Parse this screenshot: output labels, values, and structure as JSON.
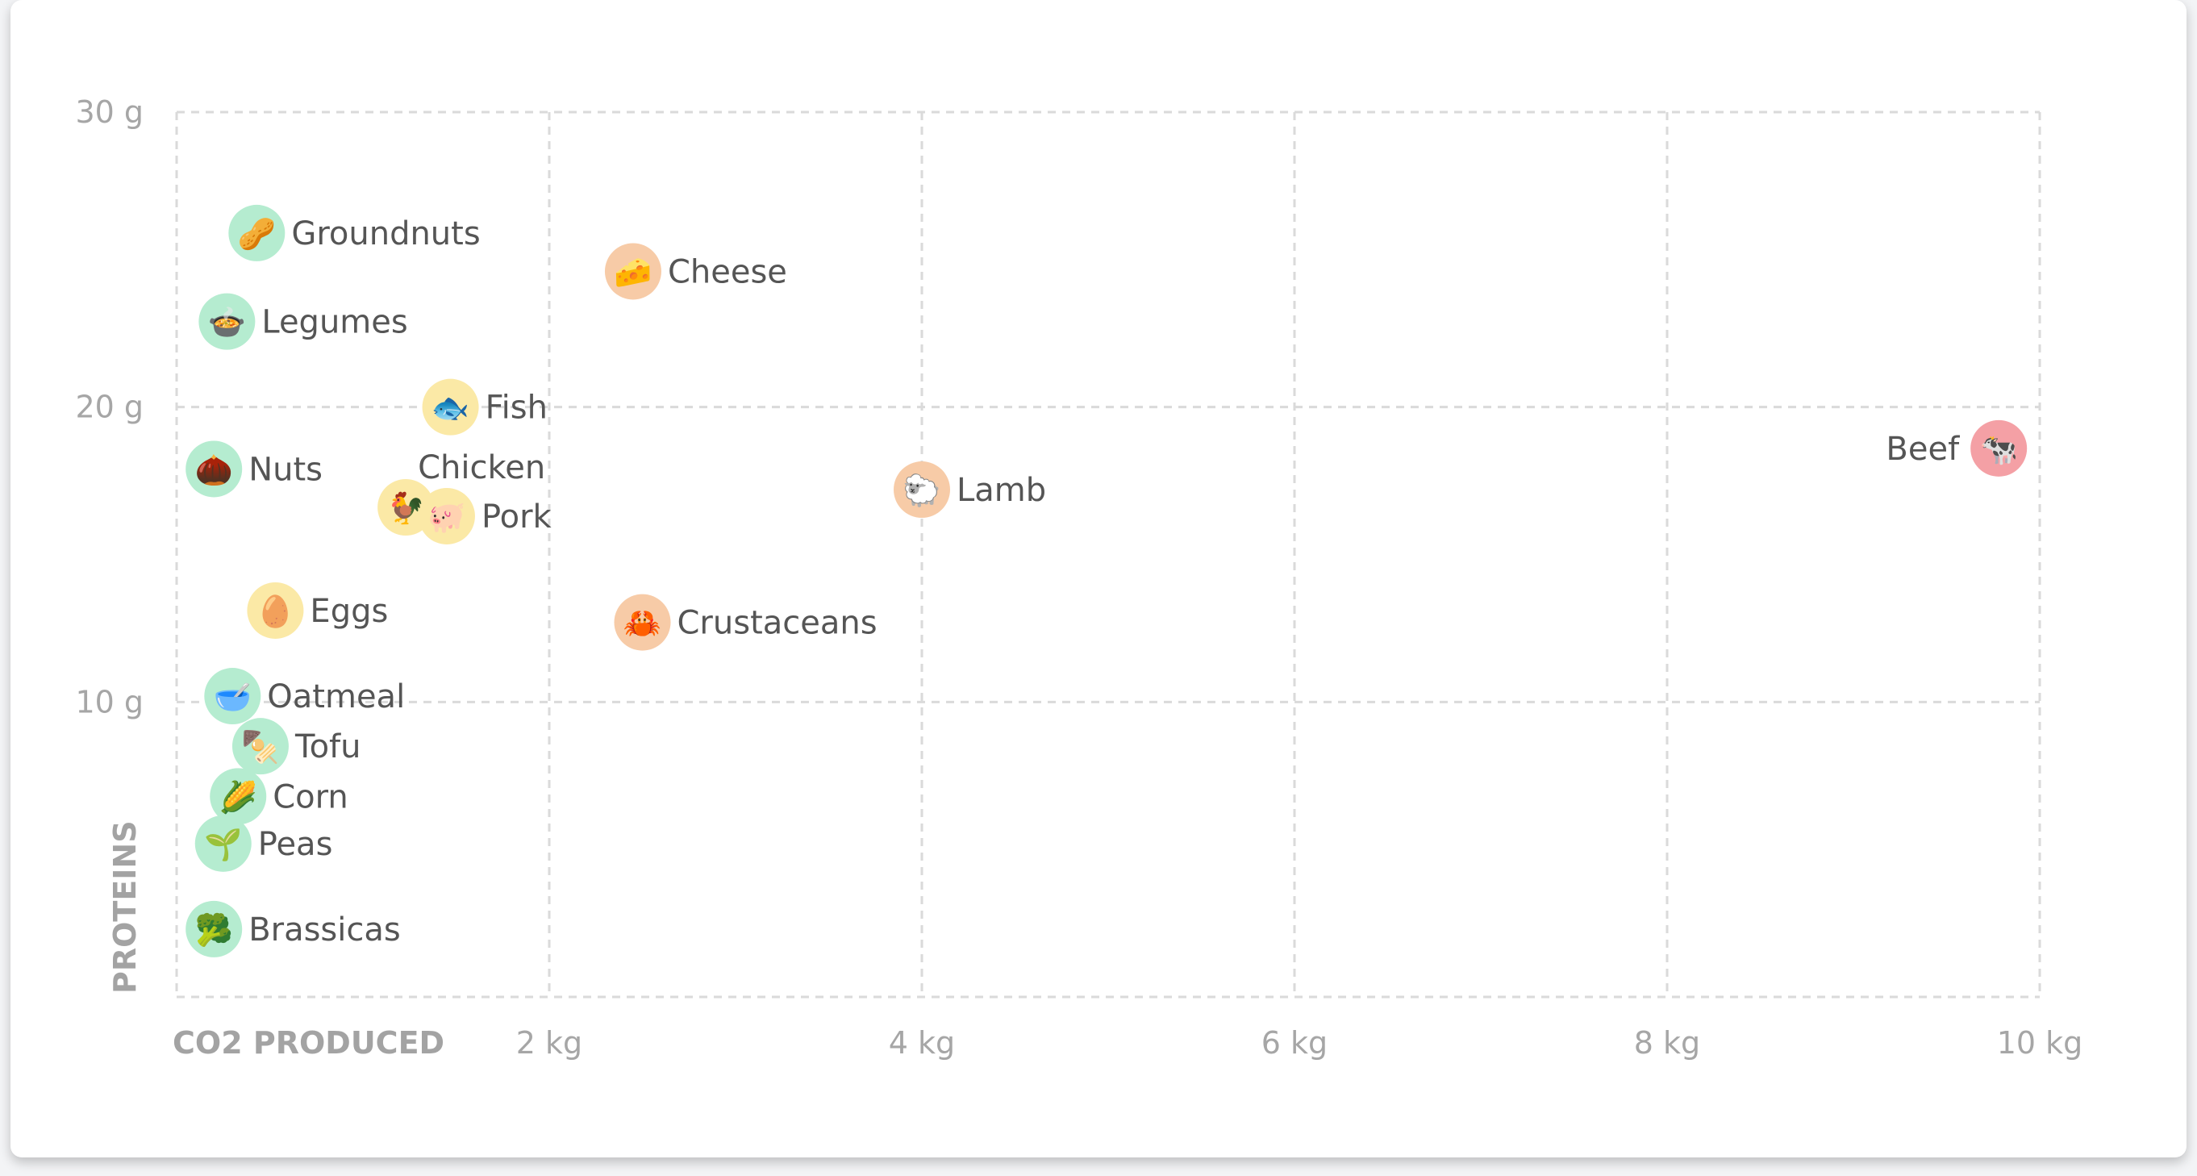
{
  "chart_data": {
    "type": "scatter",
    "xlabel": "CO2 PRODUCED",
    "ylabel": "PROTEINS",
    "xlim": [
      0,
      10
    ],
    "ylim": [
      0,
      30
    ],
    "x_ticks": [
      {
        "value": 2,
        "label": "2 kg"
      },
      {
        "value": 4,
        "label": "4 kg"
      },
      {
        "value": 6,
        "label": "6 kg"
      },
      {
        "value": 8,
        "label": "8 kg"
      },
      {
        "value": 10,
        "label": "10 kg"
      }
    ],
    "y_ticks": [
      {
        "value": 10,
        "label": "10 g"
      },
      {
        "value": 20,
        "label": "20 g"
      },
      {
        "value": 30,
        "label": "30 g"
      }
    ],
    "grid": true,
    "colors": {
      "green": "#b5ecd0",
      "yellow": "#fbe9a6",
      "orange": "#f7cba7",
      "red": "#f4a0a5"
    },
    "points": [
      {
        "label": "Groundnuts",
        "x": 0.43,
        "y": 25.9,
        "group": "green",
        "icon": "🥜",
        "label_side": "right"
      },
      {
        "label": "Legumes",
        "x": 0.27,
        "y": 22.9,
        "group": "green",
        "icon": "🍲",
        "label_side": "right"
      },
      {
        "label": "Nuts",
        "x": 0.2,
        "y": 17.9,
        "group": "green",
        "icon": "🌰",
        "label_side": "right"
      },
      {
        "label": "Oatmeal",
        "x": 0.3,
        "y": 10.2,
        "group": "green",
        "icon": "🥣",
        "label_side": "right"
      },
      {
        "label": "Tofu",
        "x": 0.45,
        "y": 8.5,
        "group": "green",
        "icon": "🍢",
        "label_side": "right"
      },
      {
        "label": "Corn",
        "x": 0.33,
        "y": 6.8,
        "group": "green",
        "icon": "🌽",
        "label_side": "right"
      },
      {
        "label": "Peas",
        "x": 0.25,
        "y": 5.2,
        "group": "green",
        "icon": "🌱",
        "label_side": "right"
      },
      {
        "label": "Brassicas",
        "x": 0.2,
        "y": 2.3,
        "group": "green",
        "icon": "🥦",
        "label_side": "right"
      },
      {
        "label": "Eggs",
        "x": 0.53,
        "y": 13.1,
        "group": "yellow",
        "icon": "🥚",
        "label_side": "right"
      },
      {
        "label": "Fish",
        "x": 1.47,
        "y": 20.0,
        "group": "yellow",
        "icon": "🐟",
        "label_side": "right"
      },
      {
        "label": "Chicken",
        "x": 1.23,
        "y": 16.6,
        "group": "yellow",
        "icon": "🐓",
        "label_side": "above"
      },
      {
        "label": "Pork",
        "x": 1.45,
        "y": 16.3,
        "group": "yellow",
        "icon": "🐖",
        "label_side": "right"
      },
      {
        "label": "Cheese",
        "x": 2.45,
        "y": 24.6,
        "group": "orange",
        "icon": "🧀",
        "label_side": "right"
      },
      {
        "label": "Crustaceans",
        "x": 2.5,
        "y": 12.7,
        "group": "orange",
        "icon": "🦀",
        "label_side": "right"
      },
      {
        "label": "Lamb",
        "x": 4.0,
        "y": 17.2,
        "group": "orange",
        "icon": "🐑",
        "label_side": "right"
      },
      {
        "label": "Beef",
        "x": 9.78,
        "y": 18.6,
        "group": "red",
        "icon": "🐄",
        "label_side": "left"
      }
    ]
  }
}
